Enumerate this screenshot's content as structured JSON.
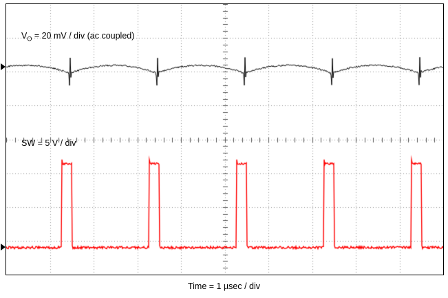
{
  "labels": {
    "vo": {
      "prefix": "V",
      "sub": "O",
      "rest": " = 20 mV / div (ac coupled)"
    },
    "sw": "SW = 5 V / div",
    "time": "Time = 1 µsec / div"
  },
  "style": {
    "background": "#ffffff",
    "grid_color": "#909090",
    "tick_color": "#555555",
    "border_color": "#000000"
  },
  "chart_data": {
    "type": "line",
    "title": "Oscilloscope capture: output voltage ripple and switch node",
    "xlabel": "Time = 1 µsec / div",
    "x_divisions": 10,
    "y_divisions": 8,
    "grid": "dotted with 0.2-div ticks on center axes",
    "time_per_div": "1 µsec",
    "switching_period_us": 2.0,
    "series": [
      {
        "name": "VO",
        "label": "VO = 20 mV / div (ac coupled)",
        "color": "#000000",
        "vertical_scale": "20 mV / div",
        "coupling": "ac",
        "waveform": "ripple-with-switching-spikes",
        "valley_div": 2.06,
        "ripple_amp_div": 0.25,
        "spike_down_div": 0.33,
        "spike_up_div": 0.45,
        "spike_at_div": 1.45,
        "period_div": 2.0
      },
      {
        "name": "SW",
        "label": "SW = 5 V / div",
        "color": "#ff0000",
        "vertical_scale": "5 V / div",
        "waveform": "pulse",
        "low_div": 7.2,
        "high_div": 4.72,
        "rise_at_div": 1.26,
        "pulse_width_div": 0.24,
        "period_div": 2.0
      }
    ]
  }
}
